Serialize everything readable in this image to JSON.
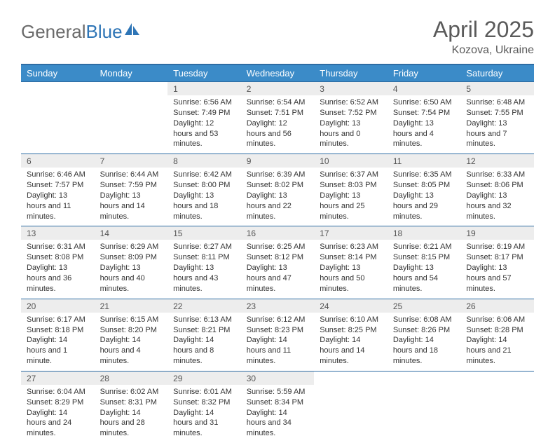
{
  "logo": {
    "part1": "General",
    "part2": "Blue"
  },
  "title": "April 2025",
  "subtitle": "Kozova, Ukraine",
  "colors": {
    "header_bg": "#3b8bc8",
    "header_border": "#2e6da4",
    "daynum_bg": "#ededed",
    "text": "#333333",
    "title_text": "#5a5a5a",
    "logo_gray": "#6b6b6b",
    "logo_blue": "#2e75b6"
  },
  "dayHeaders": [
    "Sunday",
    "Monday",
    "Tuesday",
    "Wednesday",
    "Thursday",
    "Friday",
    "Saturday"
  ],
  "weeks": [
    [
      null,
      null,
      {
        "n": "1",
        "sr": "6:56 AM",
        "ss": "7:49 PM",
        "dl": "12 hours and 53 minutes."
      },
      {
        "n": "2",
        "sr": "6:54 AM",
        "ss": "7:51 PM",
        "dl": "12 hours and 56 minutes."
      },
      {
        "n": "3",
        "sr": "6:52 AM",
        "ss": "7:52 PM",
        "dl": "13 hours and 0 minutes."
      },
      {
        "n": "4",
        "sr": "6:50 AM",
        "ss": "7:54 PM",
        "dl": "13 hours and 4 minutes."
      },
      {
        "n": "5",
        "sr": "6:48 AM",
        "ss": "7:55 PM",
        "dl": "13 hours and 7 minutes."
      }
    ],
    [
      {
        "n": "6",
        "sr": "6:46 AM",
        "ss": "7:57 PM",
        "dl": "13 hours and 11 minutes."
      },
      {
        "n": "7",
        "sr": "6:44 AM",
        "ss": "7:59 PM",
        "dl": "13 hours and 14 minutes."
      },
      {
        "n": "8",
        "sr": "6:42 AM",
        "ss": "8:00 PM",
        "dl": "13 hours and 18 minutes."
      },
      {
        "n": "9",
        "sr": "6:39 AM",
        "ss": "8:02 PM",
        "dl": "13 hours and 22 minutes."
      },
      {
        "n": "10",
        "sr": "6:37 AM",
        "ss": "8:03 PM",
        "dl": "13 hours and 25 minutes."
      },
      {
        "n": "11",
        "sr": "6:35 AM",
        "ss": "8:05 PM",
        "dl": "13 hours and 29 minutes."
      },
      {
        "n": "12",
        "sr": "6:33 AM",
        "ss": "8:06 PM",
        "dl": "13 hours and 32 minutes."
      }
    ],
    [
      {
        "n": "13",
        "sr": "6:31 AM",
        "ss": "8:08 PM",
        "dl": "13 hours and 36 minutes."
      },
      {
        "n": "14",
        "sr": "6:29 AM",
        "ss": "8:09 PM",
        "dl": "13 hours and 40 minutes."
      },
      {
        "n": "15",
        "sr": "6:27 AM",
        "ss": "8:11 PM",
        "dl": "13 hours and 43 minutes."
      },
      {
        "n": "16",
        "sr": "6:25 AM",
        "ss": "8:12 PM",
        "dl": "13 hours and 47 minutes."
      },
      {
        "n": "17",
        "sr": "6:23 AM",
        "ss": "8:14 PM",
        "dl": "13 hours and 50 minutes."
      },
      {
        "n": "18",
        "sr": "6:21 AM",
        "ss": "8:15 PM",
        "dl": "13 hours and 54 minutes."
      },
      {
        "n": "19",
        "sr": "6:19 AM",
        "ss": "8:17 PM",
        "dl": "13 hours and 57 minutes."
      }
    ],
    [
      {
        "n": "20",
        "sr": "6:17 AM",
        "ss": "8:18 PM",
        "dl": "14 hours and 1 minute."
      },
      {
        "n": "21",
        "sr": "6:15 AM",
        "ss": "8:20 PM",
        "dl": "14 hours and 4 minutes."
      },
      {
        "n": "22",
        "sr": "6:13 AM",
        "ss": "8:21 PM",
        "dl": "14 hours and 8 minutes."
      },
      {
        "n": "23",
        "sr": "6:12 AM",
        "ss": "8:23 PM",
        "dl": "14 hours and 11 minutes."
      },
      {
        "n": "24",
        "sr": "6:10 AM",
        "ss": "8:25 PM",
        "dl": "14 hours and 14 minutes."
      },
      {
        "n": "25",
        "sr": "6:08 AM",
        "ss": "8:26 PM",
        "dl": "14 hours and 18 minutes."
      },
      {
        "n": "26",
        "sr": "6:06 AM",
        "ss": "8:28 PM",
        "dl": "14 hours and 21 minutes."
      }
    ],
    [
      {
        "n": "27",
        "sr": "6:04 AM",
        "ss": "8:29 PM",
        "dl": "14 hours and 24 minutes."
      },
      {
        "n": "28",
        "sr": "6:02 AM",
        "ss": "8:31 PM",
        "dl": "14 hours and 28 minutes."
      },
      {
        "n": "29",
        "sr": "6:01 AM",
        "ss": "8:32 PM",
        "dl": "14 hours and 31 minutes."
      },
      {
        "n": "30",
        "sr": "5:59 AM",
        "ss": "8:34 PM",
        "dl": "14 hours and 34 minutes."
      },
      null,
      null,
      null
    ]
  ],
  "labels": {
    "sunrise": "Sunrise:",
    "sunset": "Sunset:",
    "daylight": "Daylight:"
  }
}
